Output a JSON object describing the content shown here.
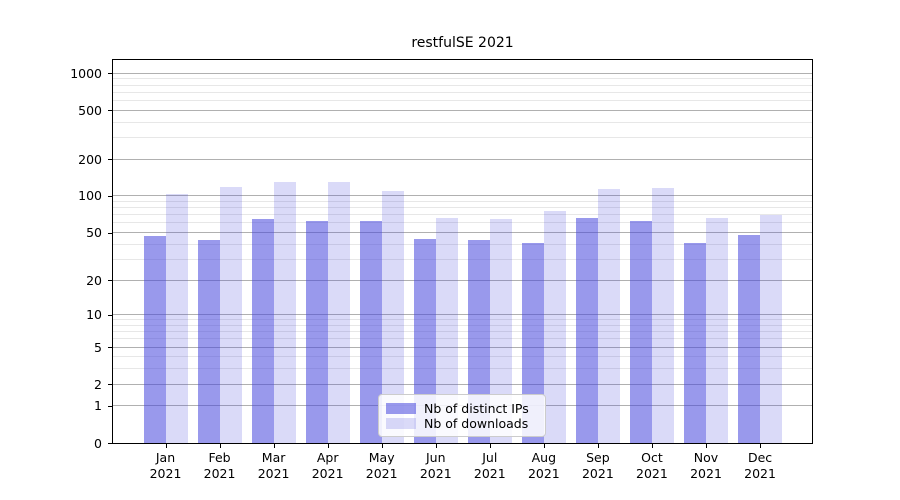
{
  "chart_data": {
    "type": "bar",
    "title": "restfulSE 2021",
    "categories": [
      "Jan",
      "Feb",
      "Mar",
      "Apr",
      "May",
      "Jun",
      "Jul",
      "Aug",
      "Sep",
      "Oct",
      "Nov",
      "Dec"
    ],
    "category_sub_label": "2021",
    "series": [
      {
        "name": "Nb of distinct IPs",
        "color": "#9999ec",
        "fill": "rgba(70,70,220,0.55)",
        "values": [
          47,
          43,
          65,
          62,
          62,
          44,
          43,
          41,
          66,
          62,
          41,
          48
        ]
      },
      {
        "name": "Nb of downloads",
        "color": "#dadaf8",
        "fill": "rgba(70,70,220,0.20)",
        "values": [
          104,
          118,
          131,
          129,
          110,
          66,
          65,
          75,
          115,
          117,
          66,
          70
        ]
      }
    ],
    "xlabel": "",
    "ylabel": "",
    "y_axis": {
      "scale": "log1p",
      "major_ticks": [
        0,
        1,
        2,
        5,
        10,
        20,
        50,
        100,
        200,
        500,
        1000
      ],
      "minor_ticks": [
        3,
        4,
        6,
        7,
        8,
        9,
        30,
        40,
        60,
        70,
        80,
        90,
        300,
        400,
        600,
        700,
        800,
        900
      ],
      "range": [
        0,
        1280
      ]
    },
    "grid": true,
    "legend_position": "lower center"
  }
}
